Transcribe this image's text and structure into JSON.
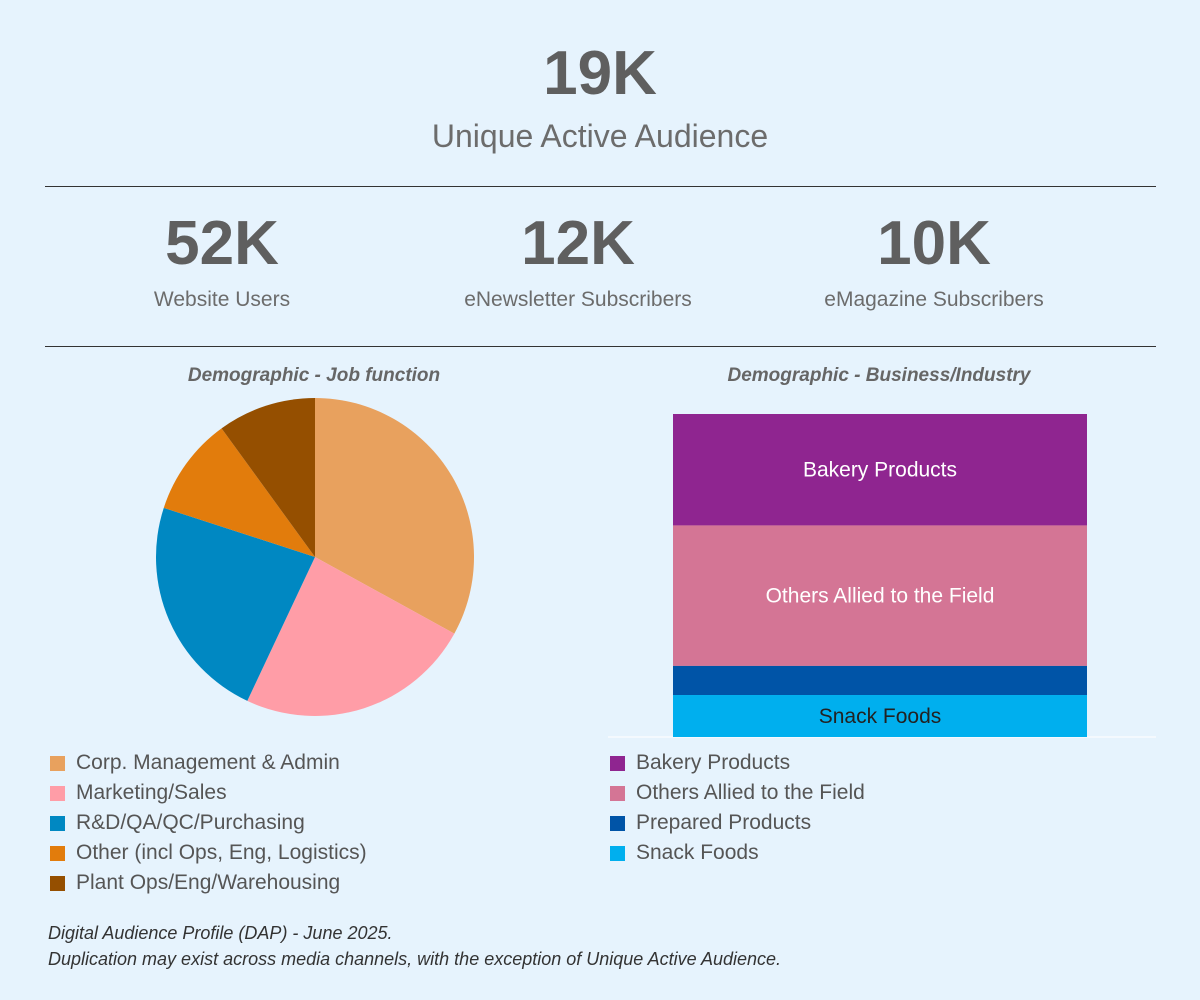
{
  "header": {
    "value": "19K",
    "label": "Unique Active Audience"
  },
  "kpis": [
    {
      "value": "52K",
      "label": "Website Users"
    },
    {
      "value": "12K",
      "label": "eNewsletter Subscribers"
    },
    {
      "value": "10K",
      "label": "eMagazine Subscribers"
    }
  ],
  "chart_data": [
    {
      "type": "pie",
      "title": "Demographic - Job function",
      "legend_position": "bottom",
      "slices": [
        {
          "label": "Corp. Management & Admin",
          "value": 33,
          "color": "#e8a15e"
        },
        {
          "label": "Marketing/Sales",
          "value": 24,
          "color": "#ff9da7"
        },
        {
          "label": "R&D/QA/QC/Purchasing",
          "value": 23,
          "color": "#0088c2"
        },
        {
          "label": "Other (incl Ops, Eng, Logistics)",
          "value": 10,
          "color": "#e27c0c"
        },
        {
          "label": "Plant Ops/Eng/Warehousing",
          "value": 10,
          "color": "#954f00"
        }
      ]
    },
    {
      "type": "bar",
      "subtype": "stacked-100",
      "title": "Demographic - Business/Industry",
      "legend_position": "bottom",
      "segments": [
        {
          "label": "Bakery Products",
          "value": 34.5,
          "color": "#8f2590",
          "show_label": true
        },
        {
          "label": "Others Allied to the Field",
          "value": 43.5,
          "color": "#d47595",
          "show_label": true
        },
        {
          "label": "Prepared Products",
          "value": 9,
          "color": "#0054a7",
          "show_label": false
        },
        {
          "label": "Snack Foods",
          "value": 13,
          "color": "#00afee",
          "show_label": true
        }
      ]
    }
  ],
  "footnote": {
    "line1": "Digital Audience Profile (DAP) - June 2025.",
    "line2": "Duplication may exist across media channels, with the exception of Unique Active Audience."
  }
}
